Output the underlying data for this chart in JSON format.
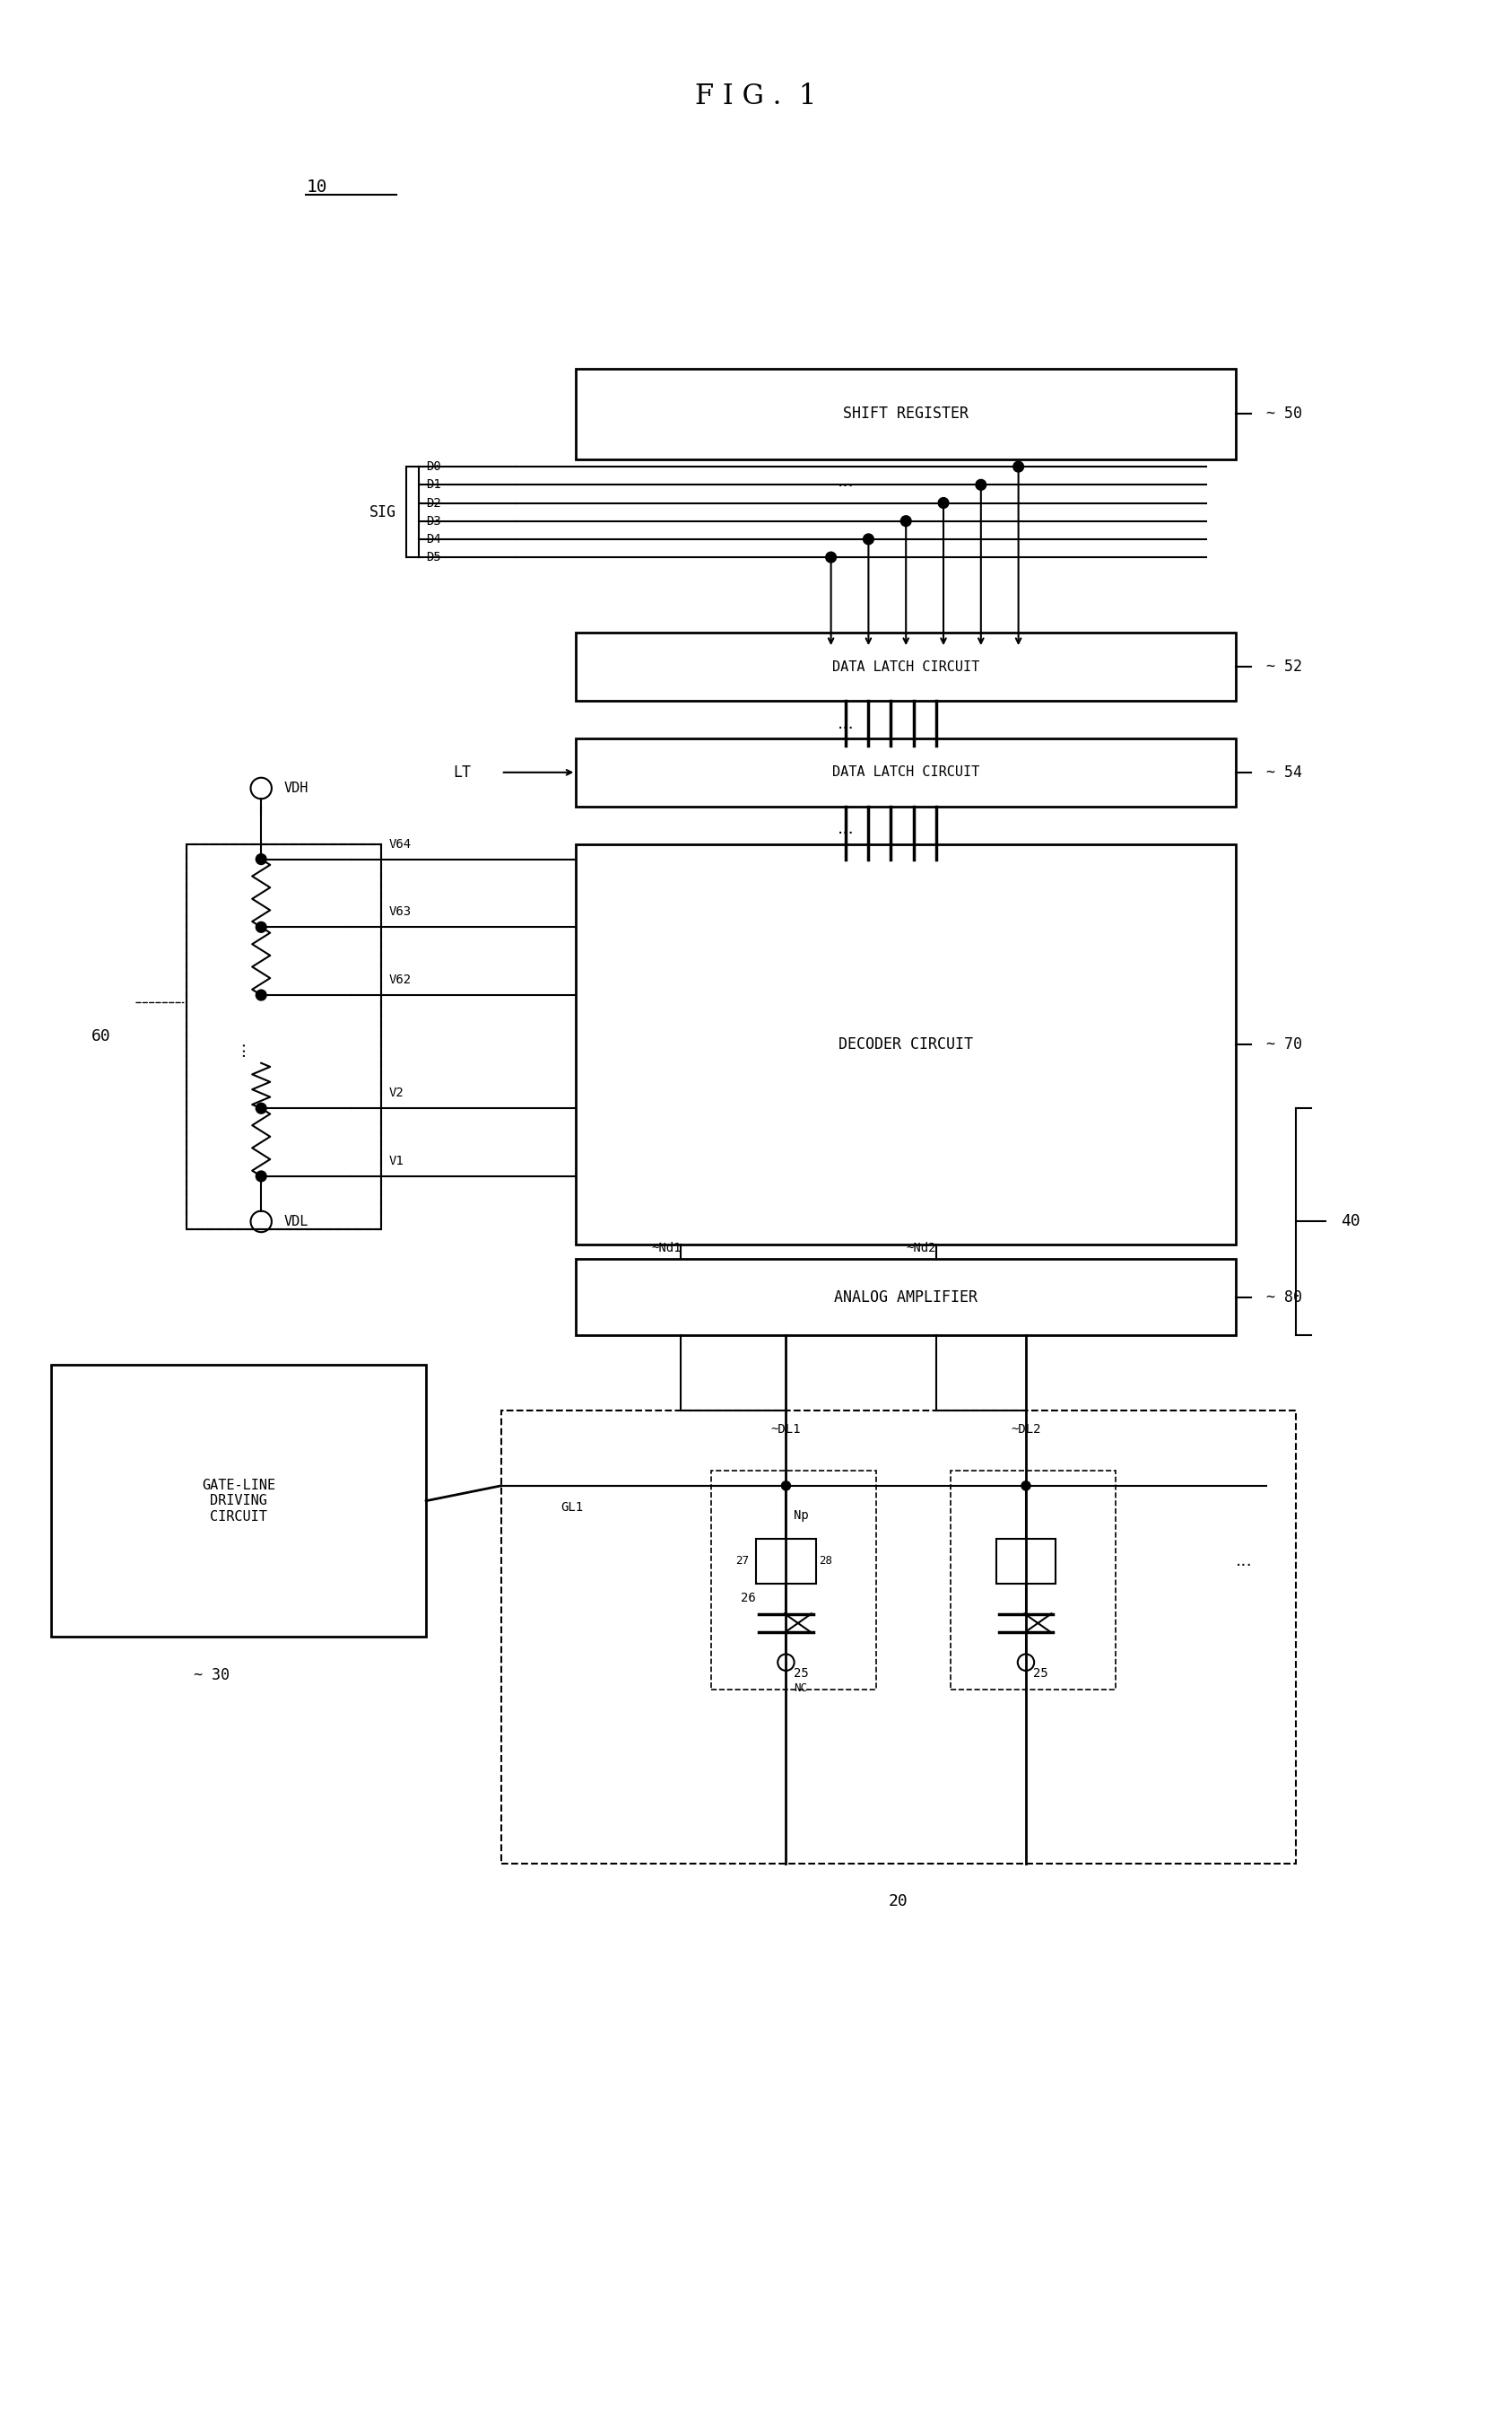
{
  "title": "FIG. 1",
  "bg_color": "#ffffff",
  "line_color": "#000000",
  "fig_width": 16.86,
  "fig_height": 27.06,
  "labels": {
    "fig_title": "F I G .  1",
    "label_10": "10",
    "label_30": "30",
    "label_20": "20",
    "label_40": "40",
    "label_50": "50",
    "label_52": "52",
    "label_54": "54",
    "label_60": "60",
    "label_70": "70",
    "label_80": "80",
    "shift_register": "SHIFT REGISTER",
    "data_latch_1": "DATA LATCH CIRCUIT",
    "data_latch_2": "DATA LATCH CIRCUIT",
    "decoder": "DECODER CIRCUIT",
    "analog_amp": "ANALOG AMPLIFIER",
    "gate_line": "GATE-LINE\nDRIVING\nCIRCUIT",
    "sig": "SIG",
    "lt": "LT",
    "vdh": "VDH",
    "vdl": "VDL",
    "d0": "D0",
    "d1": "D1",
    "d2": "D2",
    "d3": "D3",
    "d4": "D4",
    "d5": "D5",
    "v1": "V1",
    "v2": "V2",
    "v62": "V62",
    "v63": "V63",
    "v64": "V64",
    "nd1": "Nd1",
    "nd2": "Nd2",
    "dl1": "DL1",
    "dl2": "DL2",
    "gl1": "GL1",
    "nc": "NC",
    "np": "Np",
    "dots": "...",
    "n25a": "25",
    "n25b": "25",
    "n26": "26",
    "n27": "27",
    "n28": "28"
  }
}
